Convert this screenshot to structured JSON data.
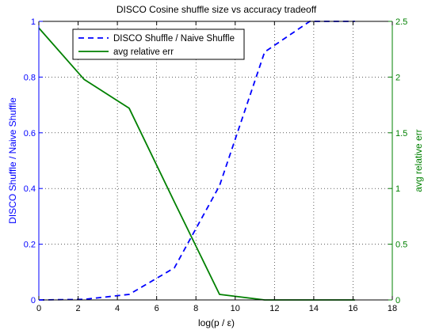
{
  "chart_data": {
    "type": "line",
    "title": "DISCO Cosine shuffle size vs accuracy tradeoff",
    "xlabel": "log(p / ε)",
    "ylabel_left": "DISCO Shuffle / Naive Shuffle",
    "ylabel_right": "avg relative err",
    "xlim": [
      0,
      18
    ],
    "ylim_left": [
      0,
      1
    ],
    "ylim_right": [
      0,
      2.5
    ],
    "x_ticks": [
      0,
      2,
      4,
      6,
      8,
      10,
      12,
      14,
      16,
      18
    ],
    "y_ticks_left": [
      0,
      0.2,
      0.4,
      0.6,
      0.8,
      1
    ],
    "y_ticks_right": [
      0,
      0.5,
      1,
      1.5,
      2,
      2.5
    ],
    "grid": true,
    "legend_position": "top-left",
    "series": [
      {
        "name": "DISCO Shuffle / Naive Shuffle",
        "axis": "left",
        "color": "#0000ff",
        "style": "dashed",
        "x": [
          0,
          2.3,
          4.6,
          6.9,
          9.2,
          11.5,
          13.8,
          16.1
        ],
        "y": [
          0.0,
          0.002,
          0.02,
          0.115,
          0.41,
          0.89,
          1.0,
          1.0
        ]
      },
      {
        "name": "avg relative err",
        "axis": "right",
        "color": "#008000",
        "style": "solid",
        "x": [
          0,
          2.3,
          4.6,
          6.9,
          9.2,
          11.5,
          13.8,
          16.1
        ],
        "y": [
          2.44,
          1.98,
          1.72,
          0.88,
          0.05,
          0.0,
          0.0,
          0.0
        ]
      }
    ]
  }
}
